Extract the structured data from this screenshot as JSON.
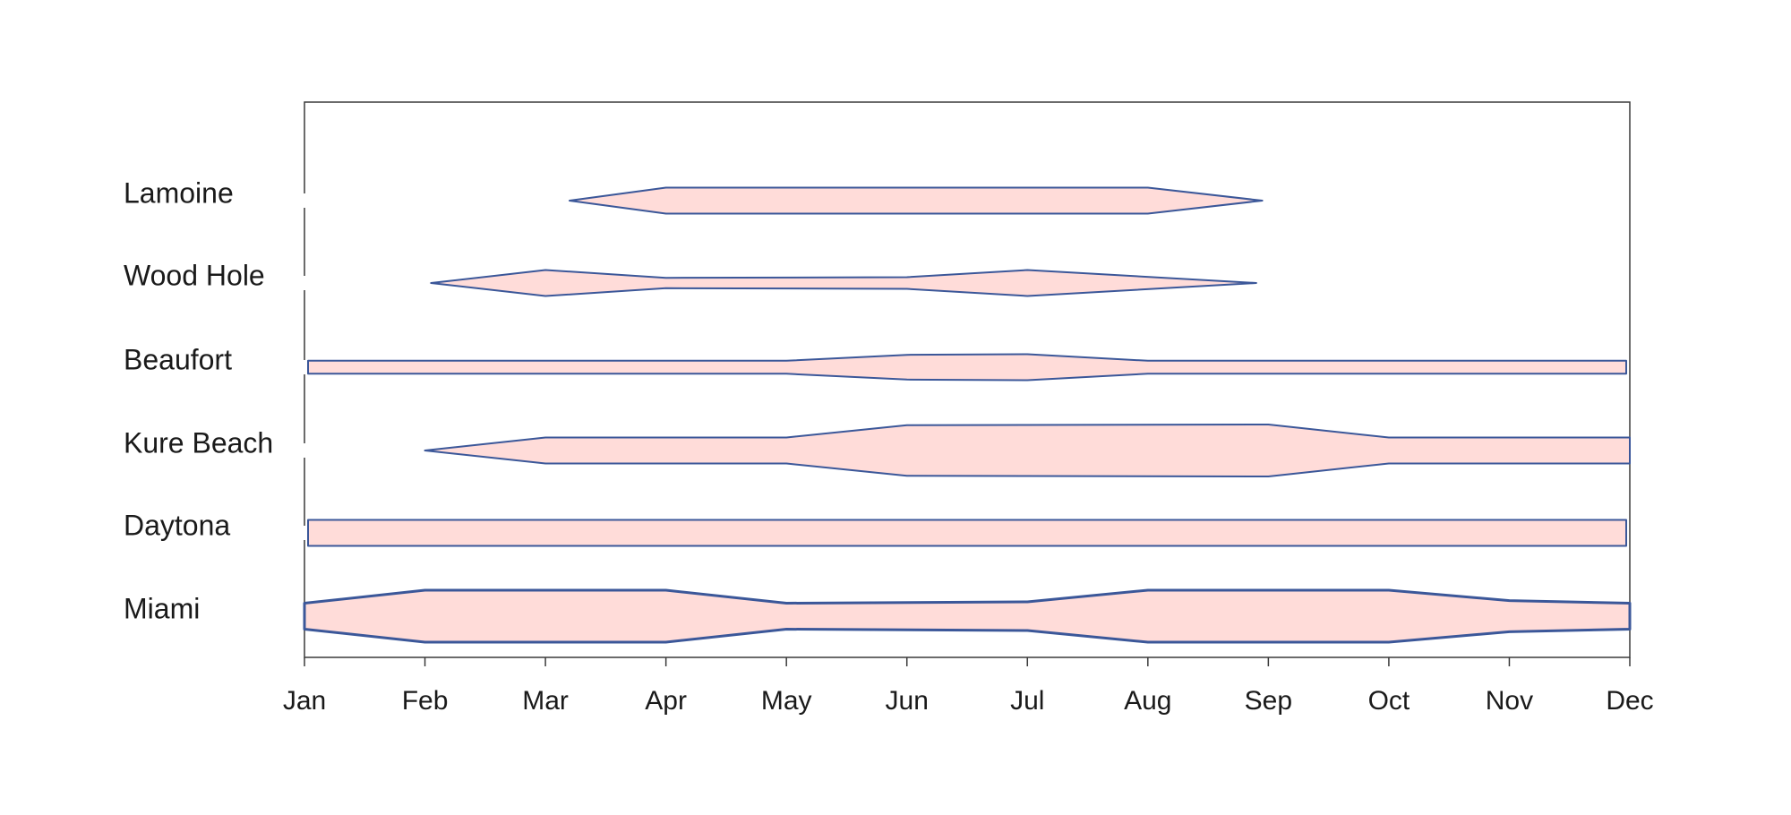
{
  "chart_data": {
    "type": "area",
    "title": "",
    "xlabel": "",
    "ylabel": "",
    "x_categories": [
      "Jan",
      "Feb",
      "Mar",
      "Apr",
      "May",
      "Jun",
      "Jul",
      "Aug",
      "Sep",
      "Oct",
      "Nov",
      "Dec"
    ],
    "grid": false,
    "legend": "none",
    "colors": {
      "fill": "#ffdcd9",
      "stroke": "#3b5799",
      "frame": "#3a3a3a"
    },
    "series": [
      {
        "name": "Lamoine",
        "points": [
          [
            2.2,
            0
          ],
          [
            3,
            1
          ],
          [
            7,
            1
          ],
          [
            7.95,
            0
          ]
        ]
      },
      {
        "name": "Wood Hole",
        "points": [
          [
            1.05,
            0
          ],
          [
            2,
            1
          ],
          [
            3,
            0.4
          ],
          [
            5,
            0.45
          ],
          [
            6,
            1
          ],
          [
            7.9,
            0
          ]
        ]
      },
      {
        "name": "Beaufort",
        "points": [
          [
            0.03,
            0.5
          ],
          [
            4,
            0.5
          ],
          [
            5,
            0.95
          ],
          [
            6,
            1
          ],
          [
            7,
            0.5
          ],
          [
            10.97,
            0.5
          ]
        ]
      },
      {
        "name": "Kure Beach",
        "points": [
          [
            1,
            0
          ],
          [
            2,
            1
          ],
          [
            4,
            1
          ],
          [
            5,
            1.95
          ],
          [
            8,
            2
          ],
          [
            9,
            1
          ],
          [
            11,
            1
          ]
        ]
      },
      {
        "name": "Daytona",
        "points": [
          [
            0.03,
            1
          ],
          [
            10.97,
            1
          ]
        ]
      },
      {
        "name": "Miami",
        "points": [
          [
            0,
            1
          ],
          [
            1,
            2
          ],
          [
            3,
            2
          ],
          [
            4,
            1
          ],
          [
            6,
            1.1
          ],
          [
            7,
            2
          ],
          [
            9,
            2
          ],
          [
            10,
            1.2
          ],
          [
            11,
            1
          ]
        ]
      }
    ]
  }
}
